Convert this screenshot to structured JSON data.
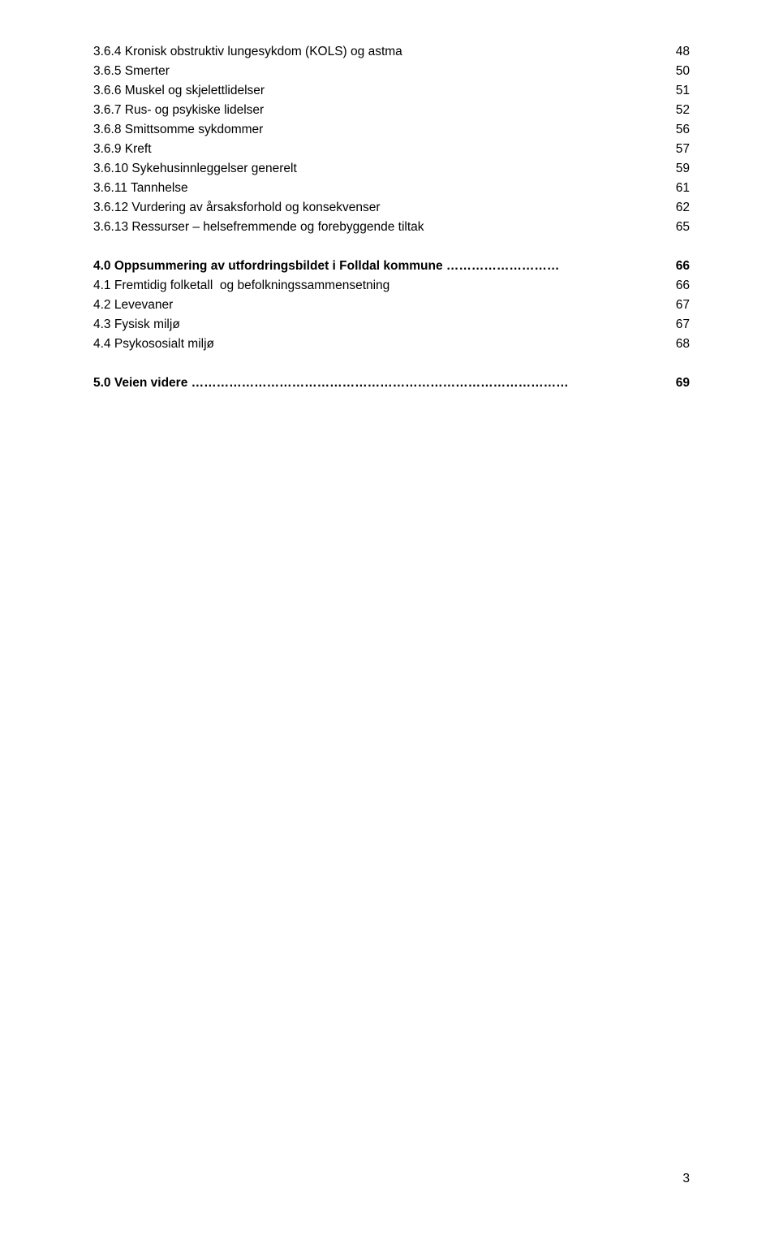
{
  "lines": [
    {
      "label": "3.6.4 Kronisk obstruktiv lungesykdom (KOLS) og astma",
      "page": "48",
      "bold": false
    },
    {
      "label": "3.6.5 Smerter",
      "page": "50",
      "bold": false
    },
    {
      "label": "3.6.6 Muskel og skjelettlidelser",
      "page": "51",
      "bold": false
    },
    {
      "label": "3.6.7 Rus- og psykiske lidelser",
      "page": "52",
      "bold": false
    },
    {
      "label": "3.6.8 Smittsomme sykdommer",
      "page": "56",
      "bold": false
    },
    {
      "label": "3.6.9 Kreft",
      "page": "57",
      "bold": false
    },
    {
      "label": "3.6.10 Sykehusinnleggelser generelt",
      "page": "59",
      "bold": false
    },
    {
      "label": "3.6.11 Tannhelse",
      "page": "61",
      "bold": false
    },
    {
      "label": "3.6.12 Vurdering av årsaksforhold og konsekvenser",
      "page": "62",
      "bold": false
    },
    {
      "label": "3.6.13 Ressurser – helsefremmende og forebyggende tiltak",
      "page": "65",
      "bold": false
    }
  ],
  "section4": [
    {
      "label": "4.0 Oppsummering av utfordringsbildet i Folldal kommune ………………………",
      "page": "66",
      "bold": true
    },
    {
      "label": "4.1 Fremtidig folketall  og befolkningssammensetning",
      "page": "66",
      "bold": false
    },
    {
      "label": "4.2 Levevaner",
      "page": "67",
      "bold": false
    },
    {
      "label": "4.3 Fysisk miljø",
      "page": "67",
      "bold": false
    },
    {
      "label": "4.4 Psykososialt miljø",
      "page": "68",
      "bold": false
    }
  ],
  "section5": [
    {
      "label": "5.0 Veien videre ………………………………………………………………………………",
      "page": "69",
      "bold": true
    }
  ],
  "pageNumber": "3"
}
